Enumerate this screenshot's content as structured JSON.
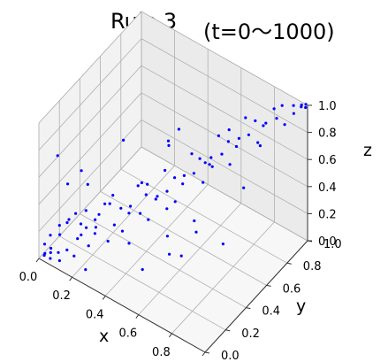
{
  "chart_data": {
    "type": "scatter",
    "title": "Rule 3",
    "subtitle": "(t=0〜1000)",
    "xlabel": "x",
    "ylabel": "y",
    "zlabel": "z",
    "xlim": [
      0,
      1
    ],
    "ylim": [
      0,
      1
    ],
    "zlim": [
      0,
      1
    ],
    "x_ticks": [
      "0.0",
      "0.2",
      "0.4",
      "0.6",
      "0.8",
      "1.0"
    ],
    "y_ticks": [
      "0.0",
      "0.2",
      "0.4",
      "0.6",
      "0.8",
      "1.0"
    ],
    "z_ticks": [
      "0.0",
      "0.2",
      "0.4",
      "0.6",
      "0.8",
      "1.0"
    ],
    "grid": true,
    "marker_color": "#0000ff",
    "pane_colors": {
      "back": "#ebebeb",
      "side": "#f2f2f2",
      "floor": "#f7f7f7"
    },
    "series": [
      {
        "points": [
          [
            0.02,
            0.02,
            0.02
          ],
          [
            0.03,
            0.01,
            0.05
          ],
          [
            0.05,
            0.03,
            0.01
          ],
          [
            0.01,
            0.04,
            0.08
          ],
          [
            0.04,
            0.05,
            0.03
          ],
          [
            0.06,
            0.02,
            0.1
          ],
          [
            0.08,
            0.06,
            0.05
          ],
          [
            0.02,
            0.08,
            0.12
          ],
          [
            0.1,
            0.04,
            0.02
          ],
          [
            0.07,
            0.09,
            0.15
          ],
          [
            0.12,
            0.08,
            0.08
          ],
          [
            0.05,
            0.12,
            0.18
          ],
          [
            0.15,
            0.1,
            0.04
          ],
          [
            0.09,
            0.13,
            0.22
          ],
          [
            0.14,
            0.15,
            0.12
          ],
          [
            0.18,
            0.12,
            0.2
          ],
          [
            0.11,
            0.18,
            0.26
          ],
          [
            0.2,
            0.16,
            0.1
          ],
          [
            0.16,
            0.2,
            0.3
          ],
          [
            0.22,
            0.19,
            0.18
          ],
          [
            0.25,
            0.15,
            0.28
          ],
          [
            0.19,
            0.24,
            0.22
          ],
          [
            0.28,
            0.22,
            0.14
          ],
          [
            0.23,
            0.27,
            0.34
          ],
          [
            0.3,
            0.25,
            0.25
          ],
          [
            0.26,
            0.3,
            0.4
          ],
          [
            0.33,
            0.28,
            0.2
          ],
          [
            0.29,
            0.33,
            0.3
          ],
          [
            0.36,
            0.31,
            0.38
          ],
          [
            0.32,
            0.36,
            0.26
          ],
          [
            0.4,
            0.34,
            0.33
          ],
          [
            0.35,
            0.4,
            0.45
          ],
          [
            0.43,
            0.37,
            0.28
          ],
          [
            0.38,
            0.43,
            0.38
          ],
          [
            0.46,
            0.41,
            0.44
          ],
          [
            0.42,
            0.46,
            0.35
          ],
          [
            0.5,
            0.44,
            0.48
          ],
          [
            0.45,
            0.5,
            0.55
          ],
          [
            0.53,
            0.47,
            0.4
          ],
          [
            0.49,
            0.53,
            0.5
          ],
          [
            0.56,
            0.51,
            0.58
          ],
          [
            0.52,
            0.56,
            0.45
          ],
          [
            0.6,
            0.54,
            0.6
          ],
          [
            0.55,
            0.6,
            0.66
          ],
          [
            0.63,
            0.58,
            0.52
          ],
          [
            0.58,
            0.63,
            0.62
          ],
          [
            0.66,
            0.61,
            0.7
          ],
          [
            0.62,
            0.66,
            0.58
          ],
          [
            0.7,
            0.65,
            0.72
          ],
          [
            0.65,
            0.7,
            0.78
          ],
          [
            0.73,
            0.68,
            0.64
          ],
          [
            0.69,
            0.73,
            0.74
          ],
          [
            0.76,
            0.72,
            0.82
          ],
          [
            0.72,
            0.76,
            0.7
          ],
          [
            0.8,
            0.75,
            0.85
          ],
          [
            0.75,
            0.8,
            0.9
          ],
          [
            0.83,
            0.79,
            0.78
          ],
          [
            0.79,
            0.83,
            0.88
          ],
          [
            0.86,
            0.82,
            0.92
          ],
          [
            0.82,
            0.86,
            0.84
          ],
          [
            0.9,
            0.86,
            0.95
          ],
          [
            0.86,
            0.9,
            0.96
          ],
          [
            0.93,
            0.89,
            0.9
          ],
          [
            0.89,
            0.93,
            0.98
          ],
          [
            0.96,
            0.93,
            0.97
          ],
          [
            0.94,
            0.96,
            0.99
          ],
          [
            0.98,
            0.97,
            1.0
          ],
          [
            0.97,
            0.99,
            0.99
          ],
          [
            1.0,
            0.98,
            1.0
          ],
          [
            0.99,
            1.0,
            1.0
          ],
          [
            0.1,
            0.3,
            0.05
          ],
          [
            0.3,
            0.1,
            0.45
          ],
          [
            0.5,
            0.2,
            0.1
          ],
          [
            0.2,
            0.5,
            0.6
          ],
          [
            0.6,
            0.3,
            0.2
          ],
          [
            0.4,
            0.6,
            0.15
          ],
          [
            0.7,
            0.4,
            0.35
          ],
          [
            0.35,
            0.7,
            0.5
          ],
          [
            0.8,
            0.5,
            0.25
          ],
          [
            0.55,
            0.8,
            0.4
          ],
          [
            0.15,
            0.05,
            0.35
          ],
          [
            0.05,
            0.2,
            0.42
          ],
          [
            0.25,
            0.05,
            0.05
          ],
          [
            0.08,
            0.28,
            0.08
          ],
          [
            0.45,
            0.15,
            0.3
          ],
          [
            0.18,
            0.4,
            0.2
          ],
          [
            0.65,
            0.2,
            0.45
          ],
          [
            0.28,
            0.55,
            0.3
          ],
          [
            0.75,
            0.3,
            0.55
          ],
          [
            0.38,
            0.75,
            0.6
          ],
          [
            0.12,
            0.22,
            0.55
          ],
          [
            0.22,
            0.12,
            0.6
          ],
          [
            0.02,
            0.15,
            0.65
          ],
          [
            0.48,
            0.28,
            0.65
          ],
          [
            0.58,
            0.45,
            0.05
          ],
          [
            0.44,
            0.55,
            0.72
          ],
          [
            0.68,
            0.52,
            0.75
          ],
          [
            0.85,
            0.62,
            0.6
          ],
          [
            0.62,
            0.85,
            0.68
          ],
          [
            0.9,
            0.7,
            0.88
          ]
        ]
      }
    ]
  }
}
